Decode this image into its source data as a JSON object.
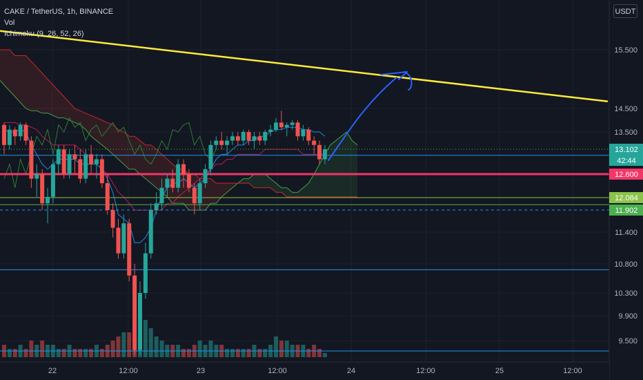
{
  "header": {
    "symbol_line": "CAKE / TetherUS, 1h, BINANCE",
    "indicator_vol": "Vol",
    "indicator_ichimoku": "Ichimoku (9, 26, 52, 26)",
    "currency": "USDT"
  },
  "colors": {
    "background": "#131722",
    "up": "#26a69a",
    "down": "#ef5350",
    "trendline": "#ffeb3b",
    "arrow": "#2962ff",
    "support": "#f23668",
    "horizontal": "#2196f3",
    "cloud_bull": "#4caf50",
    "cloud_bear": "#f44336"
  },
  "chart_data": {
    "type": "candlestick",
    "y_axis_ticks": [
      "15.500",
      "14.500",
      "13.500",
      "12.600",
      "11.400",
      "10.800",
      "10.300",
      "9.900",
      "9.500"
    ],
    "x_axis_ticks": [
      "22",
      "12:00",
      "23",
      "12:00",
      "24",
      "12:00",
      "25",
      "12:00"
    ],
    "price_tags": [
      {
        "label": "13.102",
        "sub": "42:44",
        "color": "#26a69a"
      },
      {
        "label": "12.600",
        "color": "#f23668"
      },
      {
        "label": "12.084",
        "color": "#8bc34a"
      },
      {
        "label": "11.902",
        "color": "#4caf50"
      }
    ],
    "candles": [
      [
        13.8,
        13.2,
        13.9,
        13.0
      ],
      [
        13.2,
        13.6,
        13.8,
        13.1
      ],
      [
        13.6,
        13.4,
        13.7,
        13.2
      ],
      [
        13.4,
        13.8,
        13.9,
        13.3
      ],
      [
        13.8,
        13.3,
        13.9,
        13.2
      ],
      [
        13.3,
        12.5,
        13.4,
        12.3
      ],
      [
        12.5,
        12.6,
        12.8,
        12.1
      ],
      [
        12.6,
        12.0,
        12.7,
        11.9
      ],
      [
        12.0,
        12.1,
        12.3,
        11.6
      ],
      [
        12.1,
        12.8,
        12.9,
        12.0
      ],
      [
        12.8,
        13.1,
        13.2,
        12.6
      ],
      [
        13.1,
        12.6,
        13.2,
        12.5
      ],
      [
        12.6,
        13.0,
        13.1,
        12.5
      ],
      [
        13.0,
        12.9,
        13.2,
        12.6
      ],
      [
        12.9,
        12.5,
        13.1,
        12.4
      ],
      [
        12.5,
        13.0,
        13.1,
        12.4
      ],
      [
        13.0,
        12.8,
        13.2,
        12.6
      ],
      [
        12.8,
        12.9,
        13.0,
        12.5
      ],
      [
        12.9,
        12.4,
        13.0,
        12.3
      ],
      [
        12.4,
        11.9,
        12.6,
        11.8
      ],
      [
        11.9,
        11.5,
        12.0,
        11.3
      ],
      [
        11.5,
        11.0,
        11.7,
        10.9
      ],
      [
        11.0,
        11.6,
        11.8,
        10.9
      ],
      [
        11.6,
        10.6,
        11.7,
        10.5
      ],
      [
        10.6,
        9.3,
        10.8,
        9.2
      ],
      [
        9.3,
        10.3,
        10.5,
        9.2
      ],
      [
        10.3,
        11.0,
        11.2,
        10.2
      ],
      [
        11.0,
        11.9,
        12.0,
        10.9
      ],
      [
        11.9,
        12.0,
        12.2,
        11.8
      ],
      [
        12.0,
        12.3,
        12.5,
        11.9
      ],
      [
        12.3,
        12.5,
        12.6,
        12.1
      ],
      [
        12.5,
        12.3,
        12.7,
        12.2
      ],
      [
        12.3,
        12.8,
        12.9,
        12.2
      ],
      [
        12.8,
        12.6,
        12.9,
        12.3
      ],
      [
        12.6,
        12.3,
        12.7,
        12.2
      ],
      [
        12.3,
        12.0,
        12.4,
        11.8
      ],
      [
        12.0,
        12.4,
        12.5,
        11.9
      ],
      [
        12.4,
        12.7,
        12.8,
        12.3
      ],
      [
        12.7,
        13.2,
        13.3,
        12.6
      ],
      [
        13.2,
        13.3,
        13.4,
        13.1
      ],
      [
        13.3,
        13.2,
        13.5,
        13.1
      ],
      [
        13.2,
        13.3,
        13.4,
        13.0
      ],
      [
        13.3,
        13.4,
        13.5,
        13.2
      ],
      [
        13.4,
        13.3,
        13.5,
        13.2
      ],
      [
        13.3,
        13.5,
        13.6,
        13.2
      ],
      [
        13.5,
        13.3,
        13.6,
        13.2
      ],
      [
        13.3,
        13.4,
        13.5,
        13.1
      ],
      [
        13.4,
        13.3,
        13.5,
        13.2
      ],
      [
        13.3,
        13.5,
        13.6,
        13.2
      ],
      [
        13.5,
        13.6,
        13.8,
        13.4
      ],
      [
        13.6,
        13.9,
        14.1,
        13.5
      ],
      [
        13.9,
        13.7,
        14.4,
        13.6
      ],
      [
        13.7,
        13.8,
        13.9,
        13.4
      ],
      [
        13.8,
        13.9,
        14.0,
        13.6
      ],
      [
        13.9,
        13.4,
        14.0,
        13.3
      ],
      [
        13.4,
        13.6,
        13.8,
        13.3
      ],
      [
        13.6,
        13.3,
        13.7,
        13.2
      ],
      [
        13.3,
        13.2,
        13.4,
        13.0
      ],
      [
        13.2,
        12.9,
        13.3,
        12.8
      ],
      [
        12.9,
        13.1,
        13.2,
        12.8
      ]
    ],
    "volumes": [
      3,
      2,
      2,
      3,
      2,
      4,
      3,
      4,
      3,
      3,
      2,
      2,
      3,
      2,
      2,
      2,
      2,
      3,
      2,
      3,
      4,
      5,
      6,
      6,
      10,
      8,
      9,
      7,
      5,
      4,
      3,
      3,
      3,
      2,
      2,
      3,
      4,
      3,
      4,
      3,
      3,
      2,
      2,
      2,
      2,
      2,
      3,
      2,
      2,
      3,
      5,
      4,
      4,
      3,
      3,
      3,
      2,
      3,
      2,
      1
    ],
    "ichimoku": {
      "tenkan": [
        13.6,
        13.5,
        13.5,
        13.6,
        13.5,
        13.2,
        13.0,
        12.8,
        12.7,
        12.8,
        12.9,
        12.9,
        12.9,
        12.9,
        12.8,
        12.8,
        12.8,
        12.8,
        12.7,
        12.5,
        12.2,
        11.8,
        11.7,
        11.6,
        11.2,
        11.2,
        11.3,
        11.5,
        11.9,
        12.1,
        12.3,
        12.4,
        12.4,
        12.5,
        12.4,
        12.3,
        12.4,
        12.5,
        12.7,
        12.9,
        13.0,
        13.0,
        13.1,
        13.2,
        13.2,
        13.3,
        13.3,
        13.4,
        13.4,
        13.5,
        13.6,
        13.6,
        13.7,
        13.7,
        13.7,
        13.6,
        13.6,
        13.5,
        13.5,
        13.4
      ],
      "kijun": [
        13.9,
        13.9,
        13.9,
        13.8,
        13.8,
        13.7,
        13.6,
        13.4,
        13.3,
        13.2,
        13.2,
        13.2,
        13.2,
        13.2,
        13.1,
        13.0,
        12.9,
        12.8,
        12.7,
        12.6,
        12.4,
        12.2,
        12.1,
        12.0,
        11.9,
        11.9,
        11.9,
        11.9,
        11.9,
        11.9,
        12.0,
        12.0,
        12.1,
        12.2,
        12.3,
        12.4,
        12.5,
        12.6,
        12.7,
        12.8,
        12.8,
        12.9,
        12.9,
        13.0,
        13.0,
        13.0,
        13.0,
        13.0,
        13.1,
        13.1,
        13.1,
        13.1,
        13.1,
        13.1,
        13.1,
        13.0,
        13.0,
        13.0,
        13.0,
        13.0
      ],
      "lagging": [
        12.5,
        12.8,
        12.3,
        12.9,
        12.6,
        13.0,
        13.4,
        13.2,
        13.6,
        13.0,
        13.8,
        13.5,
        14.1,
        13.7,
        13.9,
        13.3,
        13.6,
        13.8,
        13.4,
        13.6,
        13.9,
        13.5,
        13.7,
        13.3,
        13.0,
        13.2,
        12.9,
        12.8,
        13.0,
        13.3,
        13.1,
        13.6,
        13.5,
        13.8,
        13.9,
        13.2,
        13.4,
        13.0,
        12.9,
        13.1
      ],
      "span_a": [
        15.7,
        15.7,
        15.6,
        15.6,
        15.5,
        15.4,
        15.3,
        15.2,
        15.1,
        15.0,
        14.9,
        14.8,
        14.7,
        14.6,
        14.5,
        14.4,
        14.4,
        14.3,
        14.3,
        14.2,
        14.1,
        14.1,
        14.0,
        13.9,
        13.8,
        13.6,
        13.4,
        13.3,
        13.2,
        13.1,
        13.0,
        12.9,
        12.8,
        12.7,
        12.7,
        12.6,
        12.5,
        12.4,
        12.3,
        12.2,
        12.1,
        12.0,
        12.0,
        12.0,
        11.9,
        11.9,
        11.9,
        11.9,
        12.0,
        12.0,
        12.1,
        12.2,
        12.3,
        12.4,
        12.5,
        12.5,
        12.6,
        12.6,
        12.6,
        12.5,
        12.4,
        12.3,
        12.3,
        12.2,
        12.2,
        12.3,
        12.4,
        12.6,
        12.8,
        13.0,
        13.2,
        13.3,
        13.4,
        13.5,
        13.3,
        13.2
      ],
      "span_b": [
        15.6,
        15.6,
        15.6,
        15.6,
        15.6,
        15.6,
        15.6,
        15.5,
        15.5,
        15.5,
        15.5,
        15.5,
        15.4,
        15.4,
        15.4,
        15.3,
        15.2,
        15.1,
        15.0,
        14.9,
        14.8,
        14.7,
        14.6,
        14.5,
        14.4,
        14.3,
        14.2,
        14.1,
        14.0,
        13.9,
        13.8,
        13.6,
        13.5,
        13.4,
        13.4,
        13.3,
        13.2,
        13.2,
        13.1,
        13.0,
        12.9,
        12.8,
        12.7,
        12.7,
        12.6,
        12.6,
        12.5,
        12.5,
        12.5,
        12.4,
        12.4,
        12.4,
        12.4,
        12.4,
        12.4,
        12.4,
        12.3,
        12.3,
        12.3,
        12.3,
        12.2,
        12.2,
        12.1,
        12.1,
        12.1,
        12.1,
        12.1,
        12.1,
        12.1,
        12.1,
        12.1,
        12.1,
        12.1,
        12.1,
        12.1,
        12.1
      ]
    },
    "trendline": {
      "from": [
        0,
        15.82
      ],
      "to": [
        881,
        14.62
      ]
    },
    "levels": [
      {
        "price": 13.102,
        "style": "dotted"
      },
      {
        "price": 12.98,
        "style": "solid"
      },
      {
        "price": 12.6,
        "style": "solid-thick"
      },
      {
        "price": 12.084,
        "style": "solid"
      },
      {
        "price": 11.98,
        "style": "solid"
      },
      {
        "price": 11.902,
        "style": "dashed"
      },
      {
        "price": 10.7,
        "style": "solid"
      },
      {
        "price": 9.28,
        "style": "solid"
      }
    ]
  }
}
